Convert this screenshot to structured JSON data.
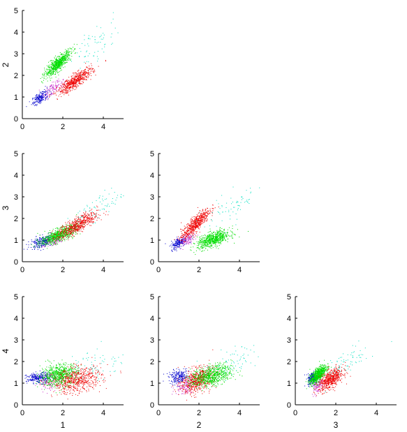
{
  "chart_data": [
    {
      "type": "scatter",
      "panel": "1-vs-2",
      "xlabel": "",
      "ylabel": "2",
      "xlim": [
        0,
        5
      ],
      "ylim": [
        0,
        5
      ],
      "xticks": [
        "0",
        "2",
        "4"
      ],
      "yticks": [
        "0",
        "1",
        "2",
        "3",
        "4",
        "5"
      ],
      "grid": false,
      "series": [
        {
          "color": "#0000cc",
          "count": 200,
          "x_mean": 0.9,
          "y_mean": 1.0,
          "x_sd": 0.22,
          "y_sd": 0.18,
          "corr": 0.7
        },
        {
          "color": "#cc33cc",
          "count": 120,
          "x_mean": 1.5,
          "y_mean": 1.4,
          "x_sd": 0.25,
          "y_sd": 0.2,
          "corr": 0.6
        },
        {
          "color": "#00dd00",
          "count": 700,
          "x_mean": 1.75,
          "y_mean": 2.55,
          "x_sd": 0.32,
          "y_sd": 0.3,
          "corr": 0.85
        },
        {
          "color": "#ee0000",
          "count": 600,
          "x_mean": 2.6,
          "y_mean": 1.75,
          "x_sd": 0.42,
          "y_sd": 0.3,
          "corr": 0.85
        },
        {
          "color": "#00e0c0",
          "count": 70,
          "x_mean": 3.6,
          "y_mean": 3.4,
          "x_sd": 0.6,
          "y_sd": 0.55,
          "corr": 0.7
        }
      ]
    },
    {
      "type": "scatter",
      "panel": "1-vs-3",
      "xlabel": "",
      "ylabel": "3",
      "xlim": [
        0,
        5
      ],
      "ylim": [
        0,
        5
      ],
      "xticks": [
        "0",
        "2",
        "4"
      ],
      "yticks": [
        "0",
        "1",
        "2",
        "3",
        "4",
        "5"
      ],
      "grid": false,
      "series": [
        {
          "color": "#0000cc",
          "count": 260,
          "x_mean": 1.0,
          "y_mean": 0.95,
          "x_sd": 0.3,
          "y_sd": 0.15,
          "corr": 0.5
        },
        {
          "color": "#cc33cc",
          "count": 120,
          "x_mean": 1.5,
          "y_mean": 1.0,
          "x_sd": 0.3,
          "y_sd": 0.15,
          "corr": 0.5
        },
        {
          "color": "#00dd00",
          "count": 700,
          "x_mean": 1.8,
          "y_mean": 1.25,
          "x_sd": 0.45,
          "y_sd": 0.22,
          "corr": 0.75
        },
        {
          "color": "#ee0000",
          "count": 600,
          "x_mean": 2.7,
          "y_mean": 1.7,
          "x_sd": 0.5,
          "y_sd": 0.3,
          "corr": 0.8
        },
        {
          "color": "#00e0c0",
          "count": 70,
          "x_mean": 3.8,
          "y_mean": 2.6,
          "x_sd": 0.6,
          "y_sd": 0.4,
          "corr": 0.7
        }
      ]
    },
    {
      "type": "scatter",
      "panel": "2-vs-3",
      "xlabel": "",
      "ylabel": "",
      "xlim": [
        0,
        5
      ],
      "ylim": [
        0,
        5
      ],
      "xticks": [
        "0",
        "2",
        "4"
      ],
      "yticks": [
        "0",
        "1",
        "2",
        "3",
        "4",
        "5"
      ],
      "grid": false,
      "series": [
        {
          "color": "#0000cc",
          "count": 200,
          "x_mean": 1.0,
          "y_mean": 0.9,
          "x_sd": 0.2,
          "y_sd": 0.15,
          "corr": 0.6
        },
        {
          "color": "#cc33cc",
          "count": 120,
          "x_mean": 1.4,
          "y_mean": 1.05,
          "x_sd": 0.2,
          "y_sd": 0.15,
          "corr": 0.5
        },
        {
          "color": "#ee0000",
          "count": 600,
          "x_mean": 1.8,
          "y_mean": 1.75,
          "x_sd": 0.35,
          "y_sd": 0.35,
          "corr": 0.85
        },
        {
          "color": "#00dd00",
          "count": 700,
          "x_mean": 2.7,
          "y_mean": 1.05,
          "x_sd": 0.4,
          "y_sd": 0.2,
          "corr": 0.6
        },
        {
          "color": "#00e0c0",
          "count": 70,
          "x_mean": 3.6,
          "y_mean": 2.5,
          "x_sd": 0.7,
          "y_sd": 0.5,
          "corr": 0.7
        }
      ]
    },
    {
      "type": "scatter",
      "panel": "1-vs-4",
      "xlabel": "1",
      "ylabel": "4",
      "xlim": [
        0,
        5
      ],
      "ylim": [
        0,
        5
      ],
      "xticks": [
        "0",
        "2",
        "4"
      ],
      "yticks": [
        "0",
        "1",
        "2",
        "3",
        "4",
        "5"
      ],
      "grid": false,
      "series": [
        {
          "color": "#0000cc",
          "count": 260,
          "x_mean": 0.8,
          "y_mean": 1.25,
          "x_sd": 0.3,
          "y_sd": 0.12,
          "corr": 0.1
        },
        {
          "color": "#cc33cc",
          "count": 120,
          "x_mean": 1.4,
          "y_mean": 1.1,
          "x_sd": 0.3,
          "y_sd": 0.2,
          "corr": 0.1
        },
        {
          "color": "#00dd00",
          "count": 700,
          "x_mean": 1.8,
          "y_mean": 1.4,
          "x_sd": 0.45,
          "y_sd": 0.25,
          "corr": 0.2
        },
        {
          "color": "#ee0000",
          "count": 600,
          "x_mean": 2.7,
          "y_mean": 1.15,
          "x_sd": 0.6,
          "y_sd": 0.3,
          "corr": 0.3
        },
        {
          "color": "#00e0c0",
          "count": 70,
          "x_mean": 3.6,
          "y_mean": 1.9,
          "x_sd": 0.7,
          "y_sd": 0.4,
          "corr": 0.2
        }
      ]
    },
    {
      "type": "scatter",
      "panel": "2-vs-4",
      "xlabel": "2",
      "ylabel": "",
      "xlim": [
        0,
        5
      ],
      "ylim": [
        0,
        5
      ],
      "xticks": [
        "0",
        "2",
        "4"
      ],
      "yticks": [
        "0",
        "1",
        "2",
        "3",
        "4",
        "5"
      ],
      "grid": false,
      "series": [
        {
          "color": "#0000cc",
          "count": 220,
          "x_mean": 1.0,
          "y_mean": 1.3,
          "x_sd": 0.25,
          "y_sd": 0.15,
          "corr": 0.1
        },
        {
          "color": "#cc33cc",
          "count": 120,
          "x_mean": 1.3,
          "y_mean": 0.9,
          "x_sd": 0.25,
          "y_sd": 0.2,
          "corr": 0.3
        },
        {
          "color": "#ee0000",
          "count": 600,
          "x_mean": 1.9,
          "y_mean": 1.15,
          "x_sd": 0.4,
          "y_sd": 0.3,
          "corr": 0.4
        },
        {
          "color": "#00dd00",
          "count": 700,
          "x_mean": 2.6,
          "y_mean": 1.35,
          "x_sd": 0.5,
          "y_sd": 0.25,
          "corr": 0.4
        },
        {
          "color": "#00e0c0",
          "count": 70,
          "x_mean": 3.7,
          "y_mean": 2.0,
          "x_sd": 0.7,
          "y_sd": 0.4,
          "corr": 0.5
        }
      ]
    },
    {
      "type": "scatter",
      "panel": "3-vs-4",
      "xlabel": "3",
      "ylabel": "",
      "xlim": [
        0,
        5
      ],
      "ylim": [
        0,
        5
      ],
      "xticks": [
        "0",
        "2",
        "4"
      ],
      "yticks": [
        "0",
        "1",
        "2",
        "3",
        "4",
        "5"
      ],
      "grid": false,
      "series": [
        {
          "color": "#0000cc",
          "count": 220,
          "x_mean": 0.85,
          "y_mean": 1.25,
          "x_sd": 0.12,
          "y_sd": 0.15,
          "corr": 0.3
        },
        {
          "color": "#cc33cc",
          "count": 120,
          "x_mean": 1.1,
          "y_mean": 0.95,
          "x_sd": 0.15,
          "y_sd": 0.2,
          "corr": 0.3
        },
        {
          "color": "#00dd00",
          "count": 700,
          "x_mean": 1.1,
          "y_mean": 1.4,
          "x_sd": 0.2,
          "y_sd": 0.22,
          "corr": 0.7
        },
        {
          "color": "#ee0000",
          "count": 600,
          "x_mean": 1.75,
          "y_mean": 1.2,
          "x_sd": 0.3,
          "y_sd": 0.25,
          "corr": 0.6
        },
        {
          "color": "#00e0c0",
          "count": 70,
          "x_mean": 2.6,
          "y_mean": 2.0,
          "x_sd": 0.5,
          "y_sd": 0.4,
          "corr": 0.7
        }
      ]
    }
  ]
}
